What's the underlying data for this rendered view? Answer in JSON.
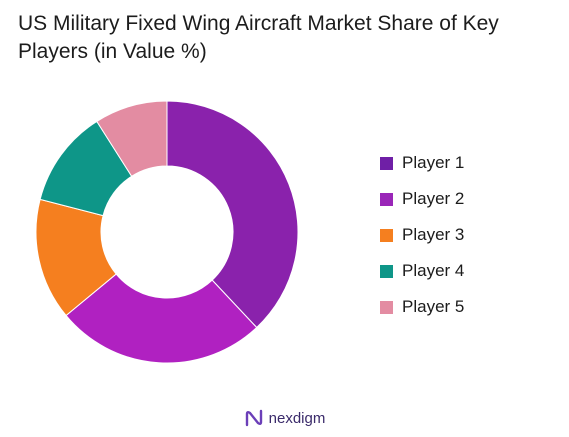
{
  "chart_data": {
    "type": "pie",
    "title": "US Military Fixed Wing Aircraft Market Share of Key Players (in Value %)",
    "categories": [
      "Player 1",
      "Player 2",
      "Player 3",
      "Player 4",
      "Player 5"
    ],
    "values": [
      38,
      26,
      15,
      12,
      9
    ],
    "colors": [
      "#8a22ac",
      "#b021c1",
      "#f57f1f",
      "#0e9688",
      "#e38ca2"
    ],
    "legend_colors": [
      "#6f1fa6",
      "#9a26b8",
      "#f57f1f",
      "#0e9688",
      "#e38ca2"
    ],
    "legend_position": "right",
    "donut": true
  },
  "footer": {
    "brand": "nexdigm",
    "logo_icon": "nexdigm-logo-icon"
  }
}
